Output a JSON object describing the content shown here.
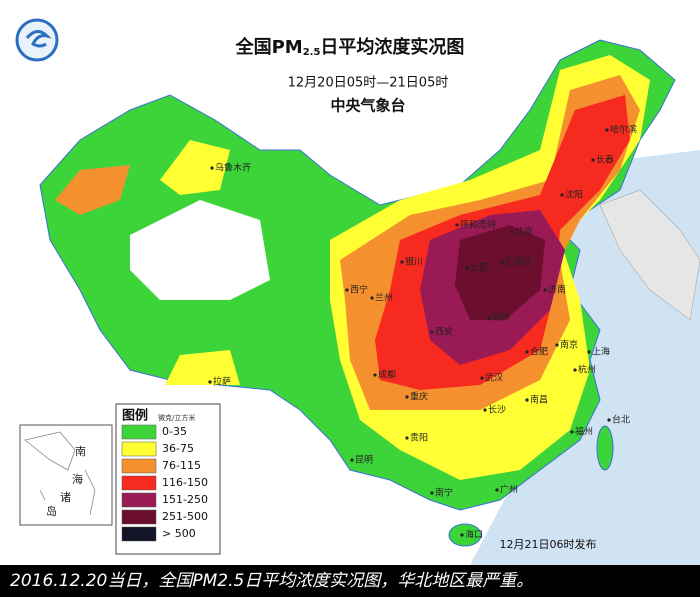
{
  "header": {
    "title_main": "全国PM",
    "title_sub": "2.5",
    "title_end": "日平均浓度实况图",
    "period": "12月20日05时—21日05时",
    "issuer": "中央气象台"
  },
  "legend": {
    "title": "图例",
    "unit": "微克/立方米",
    "items": [
      {
        "label": "0-35",
        "color": "#3dd43a"
      },
      {
        "label": "36-75",
        "color": "#ffff33"
      },
      {
        "label": "76-115",
        "color": "#f5902e"
      },
      {
        "label": "116-150",
        "color": "#f72a1f"
      },
      {
        "label": "151-250",
        "color": "#9a1a55"
      },
      {
        "label": "251-500",
        "color": "#6c0f2e"
      },
      {
        "label": "> 500",
        "color": "#121528"
      }
    ]
  },
  "inset": {
    "label_chars": [
      "南",
      "海",
      "诸",
      "岛"
    ]
  },
  "cities": [
    "乌鲁木齐",
    "拉萨",
    "哈尔滨",
    "长春",
    "沈阳",
    "呼和浩特",
    "北京",
    "银川",
    "西宁",
    "兰州",
    "太原",
    "石家庄",
    "济南",
    "郑州",
    "西安",
    "成都",
    "重庆",
    "武汉",
    "合肥",
    "南京",
    "上海",
    "杭州",
    "南昌",
    "长沙",
    "福州",
    "贵阳",
    "昆明",
    "南宁",
    "广州",
    "海口",
    "台北"
  ],
  "issued": "12月21日06时发布",
  "caption": "2016.12.20当日，全国PM2.5日平均浓度实况图，华北地区最严重。"
}
